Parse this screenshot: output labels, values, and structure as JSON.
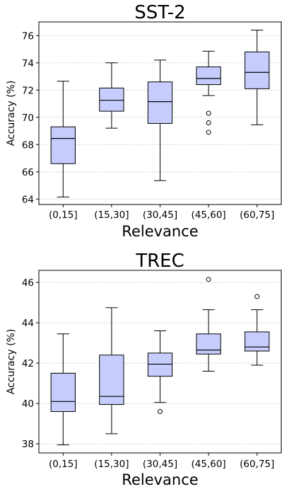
{
  "chart_data": [
    {
      "type": "box",
      "title": "SST-2",
      "xlabel": "Relevance",
      "ylabel": "Accuracy (%)",
      "categories": [
        "(0,15]",
        "(15,30]",
        "(30,45]",
        "(45,60]",
        "(60,75]"
      ],
      "ylim": [
        63.6,
        77.0
      ],
      "yticks": [
        64,
        66,
        68,
        70,
        72,
        74,
        76
      ],
      "ytick_labels": [
        "64",
        "66",
        "68",
        "70",
        "72",
        "74",
        "76"
      ],
      "grid": "horizontal-dotted",
      "box_color": "#c6cdfd",
      "boxes": [
        {
          "whislo": 64.15,
          "q1": 66.6,
          "med": 68.45,
          "q3": 69.3,
          "whishi": 72.65,
          "fliers": []
        },
        {
          "whislo": 69.2,
          "q1": 70.45,
          "med": 71.25,
          "q3": 72.15,
          "whishi": 74.0,
          "fliers": []
        },
        {
          "whislo": 65.35,
          "q1": 69.55,
          "med": 71.15,
          "q3": 72.6,
          "whishi": 74.2,
          "fliers": []
        },
        {
          "whislo": 71.6,
          "q1": 72.4,
          "med": 72.85,
          "q3": 73.7,
          "whishi": 74.85,
          "fliers": [
            70.3,
            69.6,
            68.9
          ]
        },
        {
          "whislo": 69.45,
          "q1": 72.1,
          "med": 73.3,
          "q3": 74.8,
          "whishi": 76.4,
          "fliers": []
        }
      ]
    },
    {
      "type": "box",
      "title": "TREC",
      "xlabel": "Relevance",
      "ylabel": "Accuracy (%)",
      "categories": [
        "(0,15]",
        "(15,30]",
        "(30,45]",
        "(45,60]",
        "(60,75]"
      ],
      "ylim": [
        37.55,
        46.6
      ],
      "yticks": [
        38,
        40,
        42,
        44,
        46
      ],
      "ytick_labels": [
        "38",
        "40",
        "42",
        "44",
        "46"
      ],
      "grid": "horizontal-dotted",
      "box_color": "#c6cdfd",
      "boxes": [
        {
          "whislo": 37.95,
          "q1": 39.6,
          "med": 40.1,
          "q3": 41.5,
          "whishi": 43.45,
          "fliers": []
        },
        {
          "whislo": 38.5,
          "q1": 39.95,
          "med": 40.35,
          "q3": 42.4,
          "whishi": 44.75,
          "fliers": []
        },
        {
          "whislo": 40.05,
          "q1": 41.35,
          "med": 41.95,
          "q3": 42.5,
          "whishi": 43.6,
          "fliers": [
            39.6
          ]
        },
        {
          "whislo": 41.6,
          "q1": 42.45,
          "med": 42.65,
          "q3": 43.45,
          "whishi": 44.65,
          "fliers": [
            46.15
          ]
        },
        {
          "whislo": 41.9,
          "q1": 42.6,
          "med": 42.8,
          "q3": 43.55,
          "whishi": 44.65,
          "fliers": [
            45.3
          ]
        }
      ]
    }
  ]
}
